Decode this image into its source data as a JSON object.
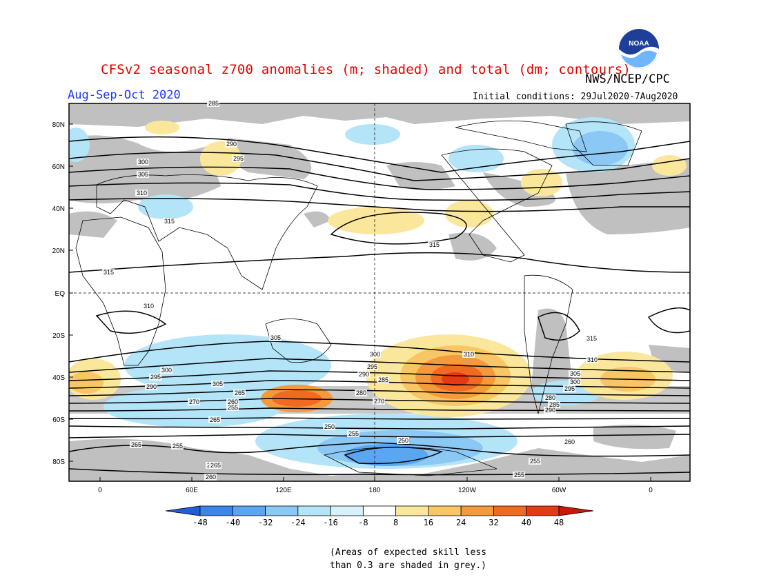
{
  "header": {
    "title": "CFSv2 seasonal z700 anomalies (m; shaded) and total (dm; contours)",
    "period": "Aug-Sep-Oct 2020",
    "agency": "NWS/NCEP/CPC",
    "initial_conditions": "Initial conditions: 29Jul2020-7Aug2020",
    "logo_text": "NOAA"
  },
  "map": {
    "lat_labels": [
      "80N",
      "60N",
      "40N",
      "20N",
      "EQ",
      "20S",
      "40S",
      "60S",
      "80S"
    ],
    "lon_labels": [
      "0",
      "60E",
      "120E",
      "180",
      "120W",
      "60W",
      "0"
    ],
    "colors": {
      "skill_grey": "#c0c0c0",
      "land_outline": "#000000",
      "contour": "#000000"
    },
    "contour_labels": [
      "285",
      "290",
      "295",
      "300",
      "305",
      "310",
      "315",
      "315",
      "315",
      "310",
      "305",
      "300",
      "295",
      "290",
      "285",
      "280",
      "270",
      "265",
      "260",
      "255",
      "250",
      "255",
      "260",
      "265",
      "255",
      "260",
      "265",
      "270",
      "280",
      "285",
      "290",
      "295",
      "300",
      "305",
      "310",
      "315",
      "310",
      "305",
      "300",
      "295",
      "290",
      "260",
      "250",
      "255",
      "265",
      "260",
      "255"
    ],
    "anomaly_features": [
      {
        "name": "South Pacific positive center",
        "value": 40
      },
      {
        "name": "Southern Ocean south of Australia positive",
        "value": 40
      },
      {
        "name": "South Atlantic positive",
        "value": 24
      },
      {
        "name": "Southern Indian Ocean negative",
        "value": -16
      },
      {
        "name": "Antarctic Pacific negative",
        "value": -24
      },
      {
        "name": "North Pacific positive",
        "value": 16
      },
      {
        "name": "Arctic Canada negative",
        "value": -16
      }
    ]
  },
  "colorbar": {
    "labels": [
      "-48",
      "-40",
      "-32",
      "-24",
      "-16",
      "-8",
      "8",
      "16",
      "24",
      "32",
      "40",
      "48"
    ],
    "colors": [
      "#1f5fd8",
      "#3a86e8",
      "#5aa6f0",
      "#8cc8f5",
      "#b4e4f8",
      "#d8f2fb",
      "#ffffff",
      "#fbe79c",
      "#f8c664",
      "#f59a3c",
      "#f26a22",
      "#e53a14",
      "#c81808"
    ]
  },
  "note": {
    "line1": "(Areas of expected skill less",
    "line2": "than 0.3 are shaded in grey.)"
  }
}
